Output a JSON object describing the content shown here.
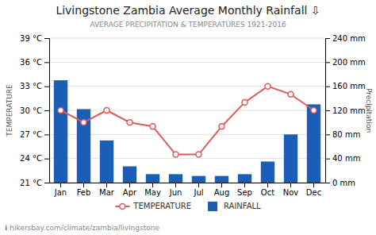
{
  "chart_data": {
    "type": "bar",
    "title": "Livingstone Zambia Average Monthly Rainfall ⇩",
    "subtitle": "AVERAGE PRECIPITATION & TEMPERATURES 1921-2016",
    "annotations": [
      "ℹ hikersbay.com/climate/zambia/livingstone"
    ],
    "ylabel": "TEMPERATURE",
    "y2label": "Precipitation",
    "categories": [
      "Jan",
      "Feb",
      "Mar",
      "Apr",
      "May",
      "Jun",
      "Jul",
      "Aug",
      "Sep",
      "Oct",
      "Nov",
      "Dec"
    ],
    "series": [
      {
        "name": "TEMPERATURE",
        "type": "line",
        "marker": "circle",
        "color": "#e05a55",
        "axis": "y",
        "values": [
          30,
          28.5,
          30,
          28.5,
          28,
          24.5,
          24.5,
          28,
          31,
          33,
          32,
          30
        ]
      },
      {
        "name": "RAINFALL",
        "type": "bar",
        "color": "#1a5eb8",
        "axis": "y2",
        "values": [
          170,
          122,
          70,
          27,
          14,
          14,
          11,
          11,
          14,
          35,
          80,
          130
        ]
      }
    ],
    "ylim": [
      21,
      39
    ],
    "yticks": [
      {
        "value": 21,
        "label": "21 °C"
      },
      {
        "value": 24,
        "label": "24 °C"
      },
      {
        "value": 27,
        "label": "27 °C"
      },
      {
        "value": 30,
        "label": "30 °C"
      },
      {
        "value": 33,
        "label": "33 °C"
      },
      {
        "value": 36,
        "label": "36 °C"
      },
      {
        "value": 39,
        "label": "39 °C"
      }
    ],
    "y2lim": [
      0,
      240
    ],
    "y2ticks": [
      {
        "value": 0,
        "label": "0 mm"
      },
      {
        "value": 40,
        "label": "40 mm"
      },
      {
        "value": 80,
        "label": "80 mm"
      },
      {
        "value": 120,
        "label": "120 mm"
      },
      {
        "value": 160,
        "label": "160 mm"
      },
      {
        "value": 200,
        "label": "200 mm"
      },
      {
        "value": 240,
        "label": "240 mm"
      }
    ],
    "grid": true,
    "legend": "bottom"
  }
}
